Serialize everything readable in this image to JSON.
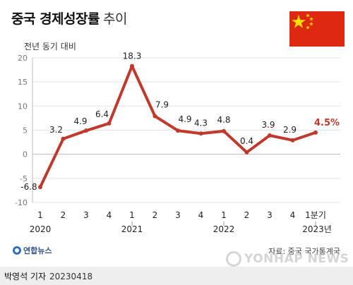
{
  "header": {
    "title": "중국 경제성장률",
    "subtitle": "추이",
    "flag_icon": "china-flag-icon"
  },
  "chart_data": {
    "type": "line",
    "title": "중국 경제성장률 추이",
    "ylabel": "전년 동기 대비",
    "xlabel": "",
    "ylim": [
      -10,
      20
    ],
    "y_ticks": [
      -10,
      -5,
      0,
      5,
      10,
      15,
      20
    ],
    "grid": true,
    "line_color": "#c0392b",
    "categories": [
      "1",
      "2",
      "3",
      "4",
      "1",
      "2",
      "3",
      "4",
      "1",
      "2",
      "3",
      "4",
      "1분기"
    ],
    "years": [
      "2020",
      "2021",
      "2022",
      "2023년"
    ],
    "series": [
      {
        "values": [
          -6.8,
          3.2,
          4.9,
          6.4,
          18.3,
          7.9,
          4.9,
          4.3,
          4.8,
          0.4,
          3.9,
          2.9,
          4.5
        ]
      }
    ],
    "data_labels": [
      "-6.8",
      "3.2",
      "4.9",
      "6.4",
      "18.3",
      "7.9",
      "4.9",
      "4.3",
      "4.8",
      "0.4",
      "3.9",
      "2.9",
      "4.5%"
    ]
  },
  "footer": {
    "agency": "연합뉴스",
    "source": "자료: 중국 국가통계국",
    "watermark": "YONHAP NEWS",
    "reporter": "박영석 기자",
    "date": "20230418"
  }
}
